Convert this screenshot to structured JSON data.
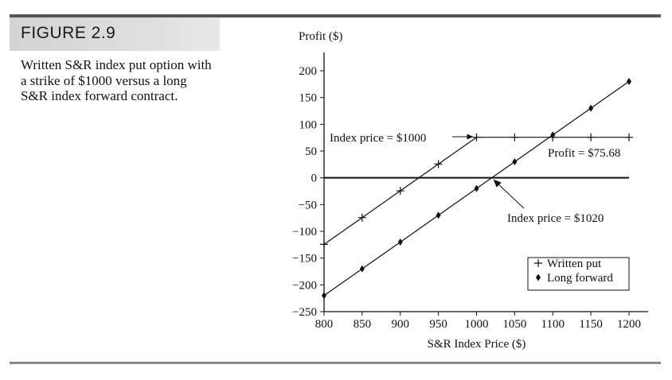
{
  "figure": {
    "label": "FIGURE 2.9",
    "caption": "Written S&R index put option with a strike of $1000 versus a long S&R index forward contract."
  },
  "chart_data": {
    "type": "line",
    "title": "",
    "xlabel": "S&R Index Price ($)",
    "ylabel": "Profit ($)",
    "xlim": [
      800,
      1200
    ],
    "ylim": [
      -250,
      200
    ],
    "x_ticks": [
      800,
      850,
      900,
      950,
      1000,
      1050,
      1100,
      1150,
      1200
    ],
    "y_ticks": [
      200,
      150,
      100,
      50,
      0,
      -50,
      -100,
      -150,
      -200,
      -250
    ],
    "tick_labels_y": [
      "200",
      "150",
      "100",
      "50",
      "0",
      "−50",
      "−100",
      "−150",
      "−200",
      "−250"
    ],
    "grid": false,
    "legend_position": "lower-right",
    "series": [
      {
        "name": "Written put",
        "marker": "plus",
        "x": [
          800,
          850,
          900,
          950,
          1000,
          1050,
          1100,
          1150,
          1200
        ],
        "y": [
          -124.32,
          -74.32,
          -24.32,
          25.68,
          75.68,
          75.68,
          75.68,
          75.68,
          75.68
        ]
      },
      {
        "name": "Long forward",
        "marker": "diamond",
        "x": [
          800,
          850,
          900,
          950,
          1000,
          1050,
          1100,
          1150,
          1200
        ],
        "y": [
          -220,
          -170,
          -120,
          -70,
          -20,
          30,
          80,
          130,
          180
        ]
      }
    ],
    "annotations": [
      {
        "text": "Index price = $1000",
        "x": 1000,
        "y": 75.68
      },
      {
        "text": "Profit = $75.68",
        "x": 1100,
        "y": 75.68
      },
      {
        "text": "Index price = $1020",
        "x": 1020,
        "y": 0
      }
    ]
  }
}
